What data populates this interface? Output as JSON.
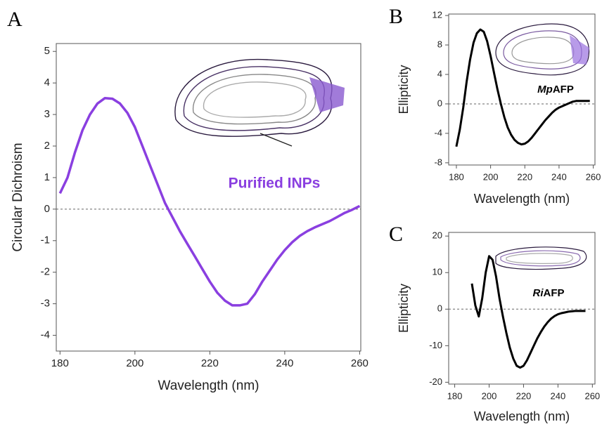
{
  "chart_data": [
    {
      "type": "line",
      "panel": "A",
      "xlabel": "Wavelength (nm)",
      "ylabel": "Circular Dichroism",
      "annotation": "Purified INPs",
      "x": [
        180,
        182,
        184,
        186,
        188,
        190,
        192,
        194,
        196,
        198,
        200,
        202,
        204,
        206,
        208,
        210,
        212,
        214,
        216,
        218,
        220,
        222,
        224,
        226,
        228,
        230,
        232,
        234,
        236,
        238,
        240,
        242,
        244,
        246,
        248,
        250,
        252,
        254,
        256,
        258,
        260
      ],
      "values": [
        0.5,
        1.0,
        1.8,
        2.5,
        3.0,
        3.35,
        3.52,
        3.5,
        3.35,
        3.05,
        2.6,
        2.0,
        1.4,
        0.8,
        0.2,
        -0.25,
        -0.7,
        -1.1,
        -1.5,
        -1.9,
        -2.3,
        -2.65,
        -2.9,
        -3.05,
        -3.05,
        -3.0,
        -2.7,
        -2.3,
        -1.95,
        -1.6,
        -1.3,
        -1.05,
        -0.85,
        -0.7,
        -0.58,
        -0.48,
        -0.38,
        -0.25,
        -0.12,
        -0.02,
        0.1
      ],
      "color": "#8a3fe0",
      "xlim": [
        179,
        260.3
      ],
      "ylim": [
        -4.5,
        5.25
      ],
      "xticks": [
        180,
        200,
        220,
        240,
        260
      ],
      "yticks": [
        -4,
        -3,
        -2,
        -1,
        0,
        1,
        2,
        3,
        4,
        5
      ],
      "zero_line": true
    },
    {
      "type": "line",
      "panel": "B",
      "xlabel": "Wavelength (nm)",
      "ylabel": "Ellipticity",
      "annotation_parts": [
        "Mp",
        "AFP"
      ],
      "x": [
        180,
        182,
        184,
        186,
        188,
        190,
        192,
        194,
        196,
        198,
        200,
        202,
        204,
        206,
        208,
        210,
        212,
        214,
        216,
        218,
        220,
        222,
        224,
        226,
        228,
        230,
        232,
        234,
        236,
        238,
        240,
        242,
        244,
        246,
        248,
        250,
        252,
        254,
        256,
        258
      ],
      "values": [
        -5.8,
        -3.5,
        -0.5,
        3,
        6,
        8.3,
        9.6,
        10.1,
        9.8,
        8.5,
        6.5,
        4.2,
        2,
        0,
        -1.8,
        -3.2,
        -4.2,
        -4.9,
        -5.3,
        -5.5,
        -5.4,
        -5.1,
        -4.6,
        -4,
        -3.4,
        -2.8,
        -2.2,
        -1.7,
        -1.2,
        -0.8,
        -0.5,
        -0.3,
        -0.1,
        0.1,
        0.3,
        0.4,
        0.4,
        0.4,
        0.4,
        0.4
      ],
      "color": "#000000",
      "xlim": [
        175.5,
        261
      ],
      "ylim": [
        -8.3,
        12.2
      ],
      "xticks": [
        180,
        200,
        220,
        240,
        260
      ],
      "yticks": [
        -8,
        -4,
        0,
        4,
        8,
        12
      ],
      "zero_line": true
    },
    {
      "type": "line",
      "panel": "C",
      "xlabel": "Wavelength (nm)",
      "ylabel": "Ellipticity",
      "annotation_parts": [
        "Ri",
        "AFP"
      ],
      "x": [
        190,
        192,
        194,
        196,
        198,
        200,
        202,
        204,
        206,
        208,
        210,
        212,
        214,
        216,
        218,
        220,
        222,
        224,
        226,
        228,
        230,
        232,
        234,
        236,
        238,
        240,
        242,
        244,
        246,
        248,
        250,
        252,
        254,
        256
      ],
      "values": [
        7,
        1,
        -2,
        3,
        10,
        14.5,
        13.5,
        9,
        3,
        -2,
        -6.5,
        -10.5,
        -13.5,
        -15.5,
        -16,
        -15.5,
        -14,
        -12,
        -10,
        -8,
        -6.3,
        -4.8,
        -3.6,
        -2.6,
        -1.9,
        -1.4,
        -1.1,
        -0.9,
        -0.7,
        -0.6,
        -0.5,
        -0.5,
        -0.5,
        -0.5
      ],
      "color": "#000000",
      "xlim": [
        176.5,
        261.5
      ],
      "ylim": [
        -20.5,
        21
      ],
      "xticks": [
        180,
        200,
        220,
        240,
        260
      ],
      "yticks": [
        -20,
        -10,
        0,
        10,
        20
      ],
      "zero_line": true
    }
  ]
}
